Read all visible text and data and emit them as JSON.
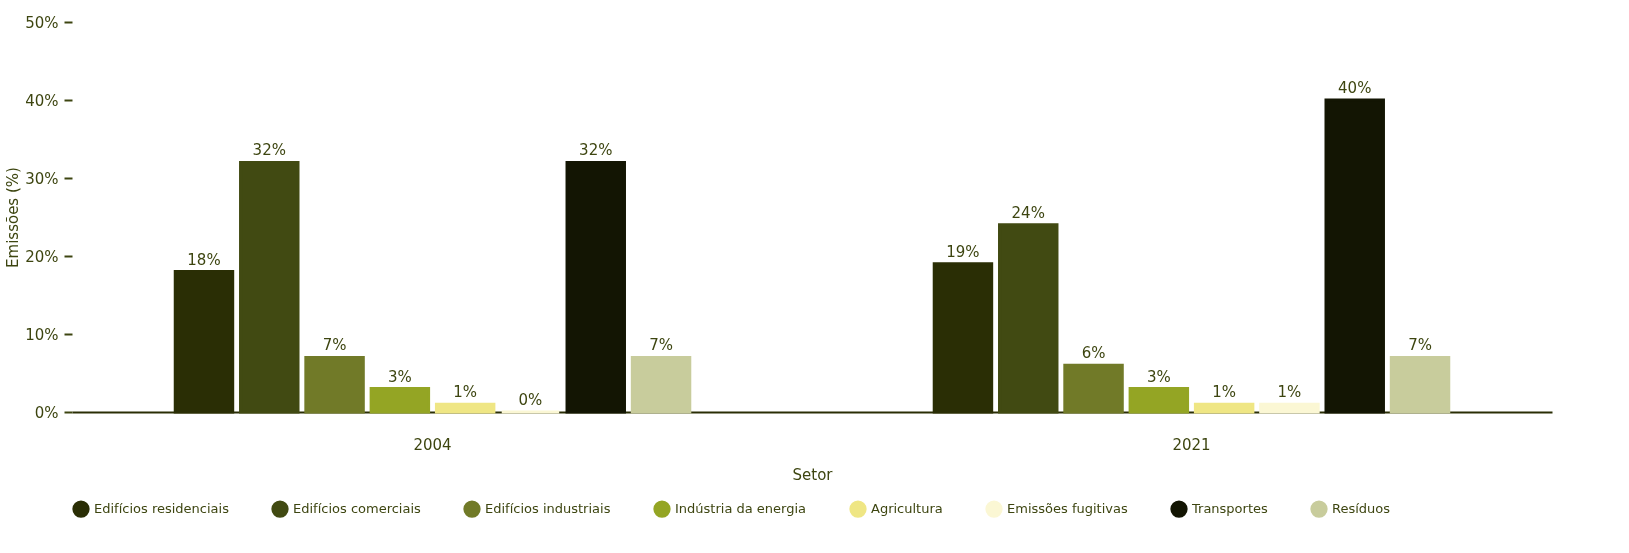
{
  "chart_data": {
    "type": "bar",
    "xlabel": "Setor",
    "ylabel": "Emissões (%)",
    "categories": [
      "2004",
      "2021"
    ],
    "series": [
      {
        "name": "Edifícios residenciais",
        "color": "#2a2e05",
        "values": [
          18,
          19
        ],
        "value_labels": [
          "18%",
          "19%"
        ]
      },
      {
        "name": "Edifícios comerciais",
        "color": "#414a12",
        "values": [
          32,
          24
        ],
        "value_labels": [
          "32%",
          "24%"
        ]
      },
      {
        "name": "Edifícios industriais",
        "color": "#717a28",
        "values": [
          7,
          6
        ],
        "value_labels": [
          "7%",
          "6%"
        ]
      },
      {
        "name": "Indústria da energia",
        "color": "#94a524",
        "values": [
          3,
          3
        ],
        "value_labels": [
          "3%",
          "3%"
        ]
      },
      {
        "name": "Agricultura",
        "color": "#efe684",
        "values": [
          1,
          1
        ],
        "value_labels": [
          "1%",
          "1%"
        ]
      },
      {
        "name": "Emissões fugitivas",
        "color": "#fbf7d4",
        "values": [
          0,
          1
        ],
        "value_labels": [
          "0%",
          "1%"
        ]
      },
      {
        "name": "Transportes",
        "color": "#131503",
        "values": [
          32,
          40
        ],
        "value_labels": [
          "32%",
          "40%"
        ]
      },
      {
        "name": "Resíduos",
        "color": "#c8cc9c",
        "values": [
          7,
          7
        ],
        "value_labels": [
          "7%",
          "7%"
        ]
      }
    ],
    "ylim": [
      0,
      50
    ],
    "yticks": [
      {
        "value": 0,
        "label": "0%"
      },
      {
        "value": 10,
        "label": "10%"
      },
      {
        "value": 20,
        "label": "20%"
      },
      {
        "value": 30,
        "label": "30%"
      },
      {
        "value": 40,
        "label": "40%"
      },
      {
        "value": 50,
        "label": "50%"
      }
    ],
    "grid": false,
    "legend": "bottom"
  }
}
